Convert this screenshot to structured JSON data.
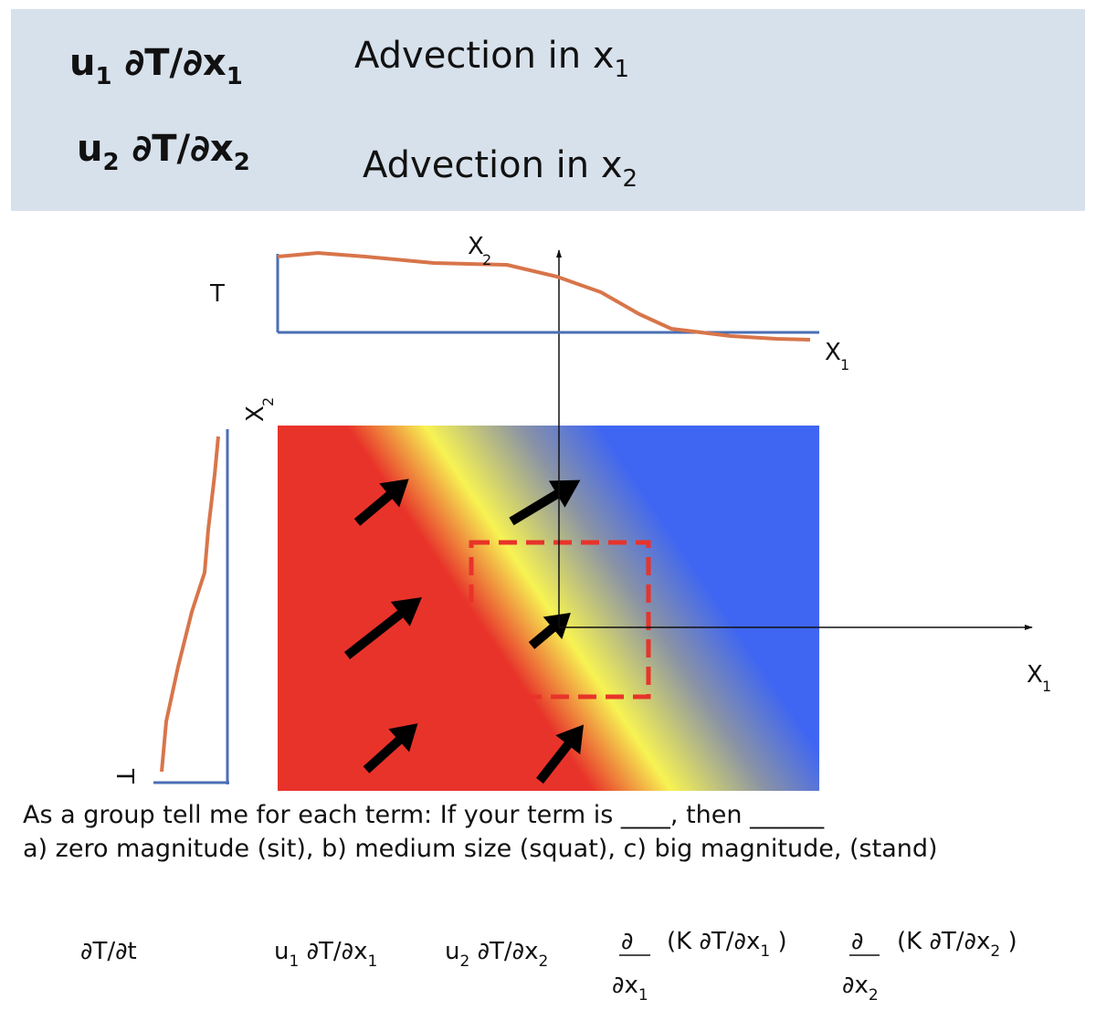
{
  "banner": {
    "row1": {
      "term_main": "u",
      "term_sub": "1",
      "term_rest": " ∂T/∂x",
      "term_sub2": "1",
      "desc_main": "Advection in x",
      "desc_sub": "1"
    },
    "row2": {
      "term_main": "u",
      "term_sub": "2",
      "term_rest": " ∂T/∂x",
      "term_sub2": "2",
      "desc_main": "Advection in x",
      "desc_sub": "2"
    },
    "bg_color": "#d7e1ec"
  },
  "diagram": {
    "top_profile": {
      "t_label": "T",
      "axis_x_label": "X",
      "axis_x_sub": "1",
      "axis_y_label": "X",
      "axis_y_sub": "2"
    },
    "left_profile": {
      "t_label": "T",
      "axis_label": "X",
      "axis_sub": "2"
    },
    "main_axes": {
      "x_label": "X",
      "x_sub": "1"
    },
    "colors": {
      "hot": "#e8332a",
      "mid": "#f7f353",
      "cold": "#3f66f2",
      "profile": "#d8754a",
      "axis": "#4a6fb5",
      "box": "#e8332a",
      "arrow": "#000000"
    }
  },
  "question": {
    "line1": "As a group tell me for each term:  If your term is ____, then ______",
    "line2": " a) zero magnitude (sit), b) medium size (squat), c) big magnitude, (stand)"
  },
  "equation": {
    "t1": "∂T/∂t",
    "t2_a": "u",
    "t2_sub": "1",
    "t2_b": " ∂T/∂x",
    "t2_sub2": "1",
    "t3_a": "u",
    "t3_sub": "2",
    "t3_b": " ∂T/∂x",
    "t3_sub2": "2",
    "t4_num": "∂",
    "t4_paren_a": "(K ∂T/∂x",
    "t4_paren_sub": "1",
    "t4_paren_b": " )",
    "t4_den": "∂x",
    "t4_den_sub": "1",
    "t5_num": "∂",
    "t5_paren_a": "(K ∂T/∂x",
    "t5_paren_sub": "2",
    "t5_paren_b": " )",
    "t5_den": "∂x",
    "t5_den_sub": "2"
  }
}
